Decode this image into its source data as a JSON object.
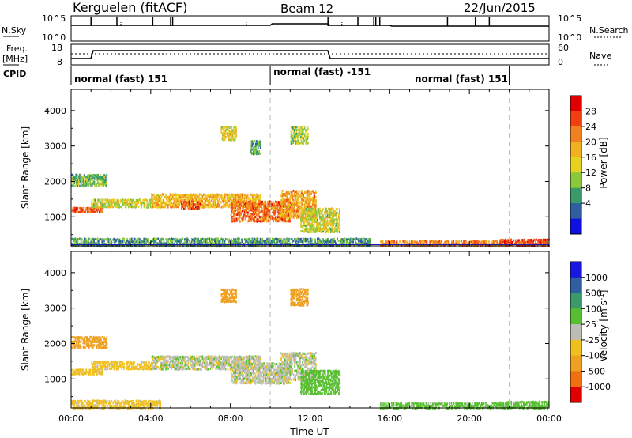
{
  "header": {
    "station": "Kerguelen (fitACF)",
    "beam": "Beam 12",
    "date": "22/Jun/2015"
  },
  "status_panels": {
    "nsky_label": "N.Sky",
    "nsky_top": "10^5",
    "nsky_bottom": "10^0",
    "nsearch_label": "N.Search",
    "nsearch_top": "10^5",
    "nsearch_bottom": "10^0",
    "freq_label_1": "Freq.",
    "freq_label_2": "[MHz]",
    "freq_top": "18",
    "freq_bottom": "8",
    "nave_label": "Nave",
    "nave_top": "60",
    "nave_bottom": "0",
    "cpid_label": "CPID",
    "cpid_segments": [
      {
        "label": "normal (fast) 151",
        "start_hour": 0,
        "end_hour": 10
      },
      {
        "label": "normal (fast) -151",
        "start_hour": 10,
        "end_hour": 22
      },
      {
        "label": "normal (fast) 151",
        "start_hour": 22,
        "end_hour": 24
      }
    ]
  },
  "chart_data": [
    {
      "type": "heatmap",
      "panel": "power",
      "ylabel": "Slant Range [km]",
      "xlabel": "",
      "x_range_hours": [
        0,
        24
      ],
      "ylim": [
        180,
        4600
      ],
      "y_ticks": [
        1000,
        2000,
        3000,
        4000
      ],
      "colorbar": {
        "label": "Power [dB]",
        "ticks": [
          "28",
          "24",
          "20",
          "16",
          "12",
          "8",
          "4"
        ],
        "colors": [
          "#e00000",
          "#f04010",
          "#f08020",
          "#f0b020",
          "#e8d020",
          "#8cc83c",
          "#3a9a6a",
          "#2f5fa0",
          "#1010e0"
        ]
      },
      "regions": [
        {
          "t0": 0.0,
          "t1": 1.6,
          "r0": 1160,
          "r1": 1320,
          "level": 26
        },
        {
          "t0": 0.0,
          "t1": 1.8,
          "r0": 1900,
          "r1": 2250,
          "level": 10
        },
        {
          "t0": 1.0,
          "t1": 4.0,
          "r0": 1300,
          "r1": 1550,
          "level": 14
        },
        {
          "t0": 4.0,
          "t1": 9.5,
          "r0": 1300,
          "r1": 1700,
          "level": 18
        },
        {
          "t0": 5.5,
          "t1": 6.5,
          "r0": 1250,
          "r1": 1500,
          "level": 26
        },
        {
          "t0": 8.0,
          "t1": 11.0,
          "r0": 900,
          "r1": 1500,
          "level": 24
        },
        {
          "t0": 10.5,
          "t1": 12.3,
          "r0": 1000,
          "r1": 1800,
          "level": 20
        },
        {
          "t0": 11.5,
          "t1": 13.5,
          "r0": 600,
          "r1": 1300,
          "level": 14
        },
        {
          "t0": 7.5,
          "t1": 8.3,
          "r0": 3200,
          "r1": 3600,
          "level": 16
        },
        {
          "t0": 9.0,
          "t1": 9.5,
          "r0": 2800,
          "r1": 3200,
          "level": 8
        },
        {
          "t0": 11.0,
          "t1": 11.9,
          "r0": 3100,
          "r1": 3600,
          "level": 12
        },
        {
          "t0": 0.0,
          "t1": 15.0,
          "r0": 200,
          "r1": 450,
          "level": 8
        },
        {
          "t0": 15.5,
          "t1": 22.0,
          "r0": 200,
          "r1": 380,
          "level": 22
        },
        {
          "t0": 21.5,
          "t1": 24.0,
          "r0": 200,
          "r1": 420,
          "level": 26
        }
      ]
    },
    {
      "type": "heatmap",
      "panel": "velocity",
      "ylabel": "Slant Range [km]",
      "xlabel": "Time UT",
      "x_range_hours": [
        0,
        24
      ],
      "x_ticks": [
        "00:00",
        "04:00",
        "08:00",
        "12:00",
        "16:00",
        "20:00",
        "00:00"
      ],
      "ylim": [
        180,
        4600
      ],
      "y_ticks": [
        1000,
        2000,
        3000,
        4000
      ],
      "colorbar": {
        "label": "Velocity [m s^-1]",
        "ticks": [
          "1000",
          "500",
          "100",
          "25",
          "-25",
          "-100",
          "-500",
          "-1000"
        ],
        "colors": [
          "#1818e0",
          "#2f5fa0",
          "#3a9a6a",
          "#58c030",
          "#bdbdb5",
          "#f0c020",
          "#f0a020",
          "#f07010",
          "#e00000"
        ]
      },
      "regions": [
        {
          "t0": 0.0,
          "t1": 1.6,
          "r0": 1160,
          "r1": 1320,
          "level": -60
        },
        {
          "t0": 0.0,
          "t1": 1.8,
          "r0": 1900,
          "r1": 2250,
          "level": -300
        },
        {
          "t0": 1.0,
          "t1": 4.0,
          "r0": 1300,
          "r1": 1550,
          "level": -60
        },
        {
          "t0": 4.0,
          "t1": 9.5,
          "r0": 1300,
          "r1": 1700,
          "level": 0
        },
        {
          "t0": 8.0,
          "t1": 11.0,
          "r0": 900,
          "r1": 1500,
          "level": 0
        },
        {
          "t0": 10.5,
          "t1": 12.3,
          "r0": 1000,
          "r1": 1800,
          "level": 0
        },
        {
          "t0": 11.5,
          "t1": 13.5,
          "r0": 600,
          "r1": 1300,
          "level": 60
        },
        {
          "t0": 7.5,
          "t1": 8.3,
          "r0": 3200,
          "r1": 3600,
          "level": -300
        },
        {
          "t0": 11.0,
          "t1": 11.9,
          "r0": 3100,
          "r1": 3600,
          "level": -300
        },
        {
          "t0": 0.0,
          "t1": 4.5,
          "r0": 200,
          "r1": 450,
          "level": -60
        },
        {
          "t0": 15.5,
          "t1": 22.0,
          "r0": 200,
          "r1": 380,
          "level": 60
        },
        {
          "t0": 21.5,
          "t1": 24.0,
          "r0": 200,
          "r1": 420,
          "level": 60
        }
      ]
    }
  ]
}
